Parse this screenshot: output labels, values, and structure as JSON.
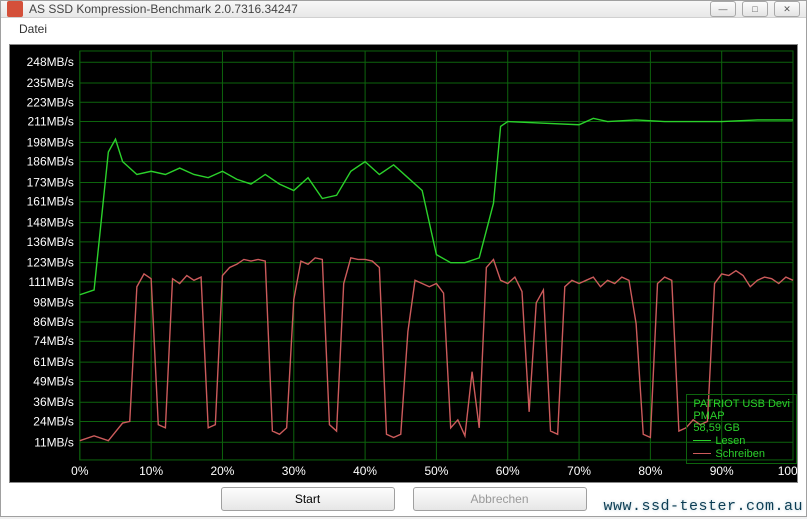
{
  "window": {
    "title": "AS SSD Kompression-Benchmark 2.0.7316.34247",
    "minimize": "—",
    "maximize": "□",
    "close": "✕"
  },
  "menu": {
    "file": "Datei"
  },
  "buttons": {
    "start": "Start",
    "abort": "Abbrechen"
  },
  "watermark": "www.ssd-tester.com.au",
  "legend": {
    "device": "PATRIOT USB Devi",
    "mapping": "PMAP",
    "capacity": "58,59 GB",
    "read_label": "Lesen",
    "write_label": "Schreiben"
  },
  "chart": {
    "background": "#000000",
    "grid_color": "#0d640d",
    "axis_text_color": "#ffffff",
    "legend_text_color": "#2bd12b",
    "read_color": "#2bd12b",
    "write_color": "#cc5b5b",
    "label_fontsize": 12,
    "xlim": [
      0,
      100
    ],
    "ylim": [
      0,
      255
    ],
    "y_ticks": [
      11,
      24,
      36,
      49,
      61,
      74,
      86,
      98,
      111,
      123,
      136,
      148,
      161,
      173,
      186,
      198,
      211,
      223,
      235,
      248
    ],
    "y_tick_suffix": "MB/s",
    "x_ticks": [
      0,
      10,
      20,
      30,
      40,
      50,
      60,
      70,
      80,
      90,
      100
    ],
    "x_tick_suffix": "%",
    "read_series": [
      [
        0,
        103
      ],
      [
        2,
        106
      ],
      [
        4,
        192
      ],
      [
        5,
        200
      ],
      [
        6,
        186
      ],
      [
        8,
        178
      ],
      [
        10,
        180
      ],
      [
        12,
        178
      ],
      [
        14,
        182
      ],
      [
        16,
        178
      ],
      [
        18,
        176
      ],
      [
        20,
        180
      ],
      [
        22,
        175
      ],
      [
        24,
        172
      ],
      [
        26,
        178
      ],
      [
        28,
        172
      ],
      [
        30,
        168
      ],
      [
        32,
        176
      ],
      [
        34,
        163
      ],
      [
        36,
        165
      ],
      [
        38,
        180
      ],
      [
        40,
        186
      ],
      [
        42,
        178
      ],
      [
        44,
        184
      ],
      [
        46,
        176
      ],
      [
        48,
        168
      ],
      [
        50,
        128
      ],
      [
        52,
        123
      ],
      [
        54,
        123
      ],
      [
        56,
        126
      ],
      [
        58,
        160
      ],
      [
        59,
        208
      ],
      [
        60,
        211
      ],
      [
        65,
        210
      ],
      [
        70,
        209
      ],
      [
        72,
        213
      ],
      [
        74,
        211
      ],
      [
        78,
        212
      ],
      [
        82,
        211
      ],
      [
        86,
        211
      ],
      [
        90,
        211
      ],
      [
        95,
        212
      ],
      [
        100,
        212
      ]
    ],
    "write_series": [
      [
        0,
        12
      ],
      [
        2,
        15
      ],
      [
        4,
        12
      ],
      [
        6,
        23
      ],
      [
        7,
        24
      ],
      [
        8,
        108
      ],
      [
        9,
        116
      ],
      [
        10,
        113
      ],
      [
        11,
        22
      ],
      [
        12,
        20
      ],
      [
        13,
        113
      ],
      [
        14,
        110
      ],
      [
        15,
        115
      ],
      [
        16,
        112
      ],
      [
        17,
        114
      ],
      [
        18,
        20
      ],
      [
        19,
        22
      ],
      [
        20,
        115
      ],
      [
        21,
        120
      ],
      [
        22,
        122
      ],
      [
        23,
        125
      ],
      [
        24,
        124
      ],
      [
        25,
        125
      ],
      [
        26,
        124
      ],
      [
        27,
        18
      ],
      [
        28,
        16
      ],
      [
        29,
        20
      ],
      [
        30,
        100
      ],
      [
        31,
        124
      ],
      [
        32,
        122
      ],
      [
        33,
        126
      ],
      [
        34,
        125
      ],
      [
        35,
        22
      ],
      [
        36,
        18
      ],
      [
        37,
        110
      ],
      [
        38,
        126
      ],
      [
        39,
        125
      ],
      [
        40,
        125
      ],
      [
        41,
        124
      ],
      [
        42,
        120
      ],
      [
        43,
        16
      ],
      [
        44,
        14
      ],
      [
        45,
        16
      ],
      [
        46,
        80
      ],
      [
        47,
        112
      ],
      [
        48,
        110
      ],
      [
        49,
        108
      ],
      [
        50,
        110
      ],
      [
        51,
        104
      ],
      [
        52,
        20
      ],
      [
        53,
        25
      ],
      [
        54,
        15
      ],
      [
        55,
        55
      ],
      [
        56,
        20
      ],
      [
        57,
        120
      ],
      [
        58,
        125
      ],
      [
        59,
        112
      ],
      [
        60,
        110
      ],
      [
        61,
        114
      ],
      [
        62,
        105
      ],
      [
        63,
        30
      ],
      [
        64,
        98
      ],
      [
        65,
        106
      ],
      [
        66,
        18
      ],
      [
        67,
        16
      ],
      [
        68,
        108
      ],
      [
        69,
        112
      ],
      [
        70,
        110
      ],
      [
        71,
        112
      ],
      [
        72,
        114
      ],
      [
        73,
        108
      ],
      [
        74,
        112
      ],
      [
        75,
        110
      ],
      [
        76,
        114
      ],
      [
        77,
        112
      ],
      [
        78,
        85
      ],
      [
        79,
        16
      ],
      [
        80,
        14
      ],
      [
        81,
        110
      ],
      [
        82,
        114
      ],
      [
        83,
        112
      ],
      [
        84,
        18
      ],
      [
        85,
        20
      ],
      [
        86,
        25
      ],
      [
        87,
        22
      ],
      [
        88,
        24
      ],
      [
        89,
        110
      ],
      [
        90,
        116
      ],
      [
        91,
        115
      ],
      [
        92,
        118
      ],
      [
        93,
        115
      ],
      [
        94,
        108
      ],
      [
        95,
        112
      ],
      [
        96,
        114
      ],
      [
        97,
        113
      ],
      [
        98,
        110
      ],
      [
        99,
        114
      ],
      [
        100,
        112
      ]
    ]
  }
}
